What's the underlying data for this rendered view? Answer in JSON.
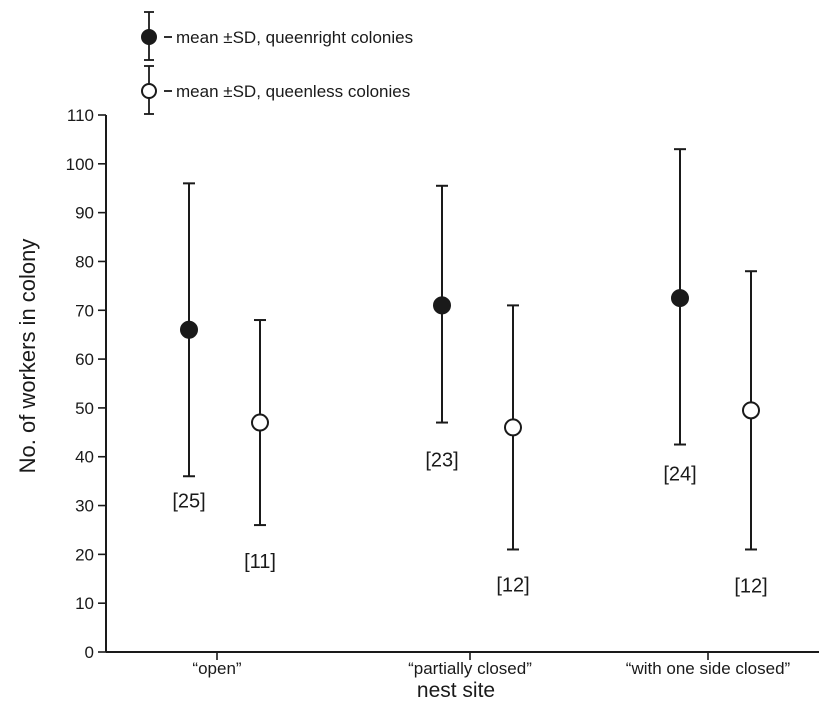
{
  "chart_data": {
    "type": "scatter",
    "xlabel": "nest site",
    "ylabel": "No. of workers in colony",
    "ylim": [
      0,
      110
    ],
    "yticks": [
      0,
      10,
      20,
      30,
      40,
      50,
      60,
      70,
      80,
      90,
      100,
      110
    ],
    "categories": [
      "“open”",
      "“partially closed”",
      "“with one side closed”"
    ],
    "grid": false,
    "legend": "top-left",
    "series": [
      {
        "name": "mean ±SD, queenright colonies",
        "marker": "filled-circle",
        "color": "#1a1a1a",
        "mean": [
          66,
          71,
          72.5
        ],
        "sd_low": [
          36,
          47,
          42.5
        ],
        "sd_high": [
          96,
          95.5,
          103
        ],
        "n_labels": [
          "[25]",
          "[23]",
          "[24]"
        ]
      },
      {
        "name": "mean ±SD, queenless colonies",
        "marker": "open-circle",
        "color": "#1a1a1a",
        "mean": [
          47,
          46,
          49.5
        ],
        "sd_low": [
          26,
          21,
          21
        ],
        "sd_high": [
          68,
          71,
          78
        ],
        "n_labels": [
          "[11]",
          "[12]",
          "[12]"
        ]
      }
    ]
  }
}
